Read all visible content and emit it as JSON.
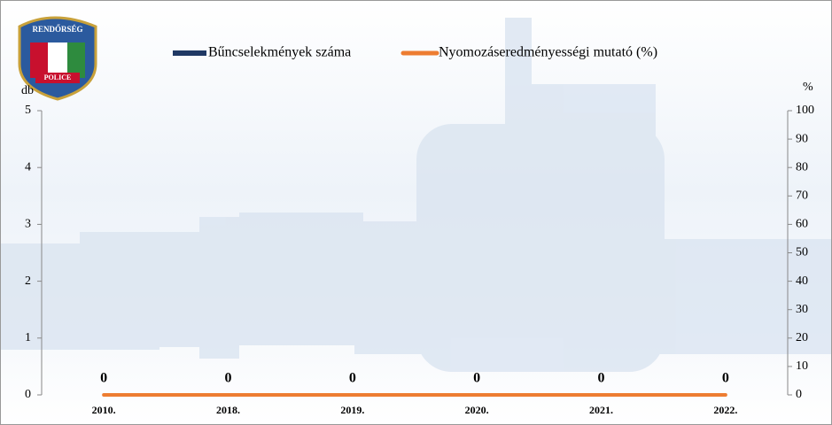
{
  "logo": {
    "top": "RENDŐRSÉG",
    "bottom": "POLICE"
  },
  "chart_data": {
    "type": "bar",
    "categories": [
      "2010.",
      "2018.",
      "2019.",
      "2020.",
      "2021.",
      "2022."
    ],
    "series": [
      {
        "name": "Bűncselekmények száma",
        "color": "#1f3864",
        "values": [
          0,
          0,
          0,
          0,
          0,
          0
        ]
      },
      {
        "name": "Nyomozáseredményességi mutató (%)",
        "color": "#ed7d31",
        "type": "line",
        "axis": "y2",
        "values": [
          0,
          0,
          0,
          0,
          0,
          0
        ]
      }
    ],
    "y_label": "db",
    "y2_label": "%",
    "ylim": [
      0,
      5
    ],
    "yticks": [
      0,
      1,
      2,
      3,
      4,
      5
    ],
    "y2lim": [
      0,
      100
    ],
    "y2ticks": [
      0,
      10,
      20,
      30,
      40,
      50,
      60,
      70,
      80,
      90,
      100
    ]
  }
}
